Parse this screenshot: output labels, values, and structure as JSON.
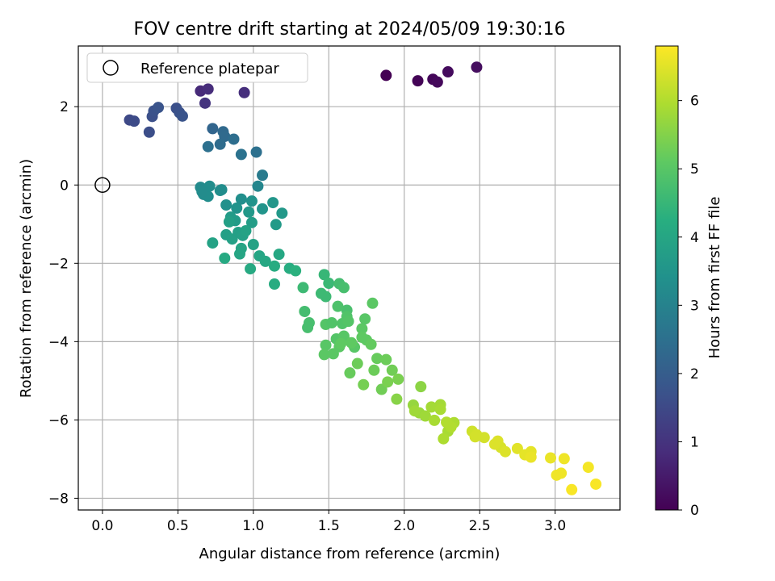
{
  "chart_data": {
    "type": "scatter",
    "title": "FOV centre drift starting at 2024/05/09 19:30:16",
    "xlabel": "Angular distance from reference (arcmin)",
    "ylabel": "Rotation from reference (arcmin)",
    "xlim": [
      -0.16,
      3.43
    ],
    "ylim": [
      -8.3,
      3.55
    ],
    "xticks": [
      0.0,
      0.5,
      1.0,
      1.5,
      2.0,
      2.5,
      3.0
    ],
    "xtick_labels": [
      "0.0",
      "0.5",
      "1.0",
      "1.5",
      "2.0",
      "2.5",
      "3.0"
    ],
    "yticks": [
      2,
      0,
      -2,
      -4,
      -6,
      -8
    ],
    "ytick_labels": [
      "2",
      "0",
      "−2",
      "−4",
      "−6",
      "−8"
    ],
    "grid": true,
    "legend": {
      "placement": "top-left",
      "entries": [
        "Reference platepar"
      ]
    },
    "reference_point": {
      "x": 0.0,
      "y": 0.0,
      "label": "Reference platepar"
    },
    "colorbar": {
      "label": "Hours from first FF file",
      "colormap": "viridis",
      "range": [
        0,
        6.8
      ],
      "ticks": [
        0,
        1,
        2,
        3,
        4,
        5,
        6
      ],
      "tick_labels": [
        "0",
        "1",
        "2",
        "3",
        "4",
        "5",
        "6"
      ]
    },
    "series": [
      {
        "x": [
          1.88,
          2.09,
          2.19,
          2.22,
          2.29,
          2.48,
          0.65,
          0.7,
          0.94,
          0.68,
          0.18,
          0.21,
          0.31,
          0.33,
          0.34,
          0.37,
          0.49,
          0.51,
          0.53,
          0.73,
          0.8,
          0.81,
          0.78,
          0.87,
          0.7,
          0.92,
          1.02,
          1.06,
          0.65,
          0.67,
          0.7,
          0.71,
          0.78,
          0.79,
          0.66,
          0.82,
          0.89,
          0.92,
          0.99,
          1.06,
          1.13,
          1.19,
          1.15,
          0.85,
          0.88,
          0.97,
          0.99,
          1.03,
          0.82,
          0.86,
          0.9,
          0.93,
          0.95,
          0.84,
          0.92,
          1.0,
          1.04,
          1.08,
          0.73,
          0.81,
          0.91,
          0.98,
          1.14,
          1.14,
          1.17,
          1.24,
          1.28,
          1.33,
          1.34,
          1.36,
          1.37,
          1.47,
          1.48,
          1.5,
          1.45,
          1.57,
          1.6,
          1.62,
          1.56,
          1.62,
          1.59,
          1.63,
          1.48,
          1.52,
          1.55,
          1.6,
          1.67,
          1.72,
          1.74,
          1.79,
          1.48,
          1.53,
          1.57,
          1.65,
          1.72,
          1.75,
          1.78,
          1.82,
          1.88,
          1.92,
          1.96,
          1.47,
          1.58,
          1.64,
          1.69,
          1.8,
          1.85,
          1.89,
          1.73,
          1.95,
          2.06,
          2.1,
          2.14,
          2.18,
          2.24,
          2.29,
          2.33,
          2.07,
          2.2,
          2.26,
          2.31,
          2.11,
          2.24,
          2.28,
          2.45,
          2.48,
          2.53,
          2.62,
          2.64,
          2.67,
          2.75,
          2.84,
          2.47,
          2.6,
          2.8,
          2.84,
          2.97,
          3.06,
          3.04,
          3.01,
          3.22,
          3.11,
          3.27
        ],
        "y": [
          2.8,
          2.66,
          2.7,
          2.63,
          2.89,
          3.01,
          2.4,
          2.45,
          2.36,
          2.09,
          1.66,
          1.63,
          1.35,
          1.75,
          1.89,
          1.98,
          1.96,
          1.85,
          1.76,
          1.44,
          1.36,
          1.24,
          1.04,
          1.17,
          0.98,
          0.78,
          0.84,
          0.25,
          -0.06,
          -0.24,
          -0.29,
          -0.03,
          -0.14,
          -0.12,
          -0.17,
          -0.51,
          -0.59,
          -0.36,
          -0.41,
          -0.61,
          -0.45,
          -0.72,
          -1.01,
          -0.82,
          -0.91,
          -0.69,
          -0.96,
          -0.03,
          -1.27,
          -1.38,
          -1.21,
          -1.29,
          -1.17,
          -0.94,
          -1.62,
          -1.52,
          -1.81,
          -1.95,
          -1.48,
          -1.87,
          -1.76,
          -2.14,
          -2.07,
          -2.53,
          -1.77,
          -2.13,
          -2.19,
          -2.62,
          -3.23,
          -3.64,
          -3.52,
          -2.29,
          -2.85,
          -2.51,
          -2.77,
          -2.52,
          -2.62,
          -3.2,
          -3.1,
          -3.36,
          -3.54,
          -3.48,
          -3.56,
          -3.52,
          -3.93,
          -3.86,
          -4.14,
          -3.67,
          -3.42,
          -3.02,
          -4.09,
          -4.31,
          -4.13,
          -4.03,
          -3.89,
          -3.96,
          -4.07,
          -4.43,
          -4.46,
          -4.73,
          -4.96,
          -4.33,
          -4.05,
          -4.8,
          -4.56,
          -4.73,
          -5.22,
          -5.03,
          -5.1,
          -5.47,
          -5.62,
          -5.82,
          -5.9,
          -5.67,
          -5.61,
          -6.29,
          -6.07,
          -5.77,
          -6.01,
          -6.48,
          -6.18,
          -5.15,
          -5.73,
          -6.06,
          -6.29,
          -6.38,
          -6.45,
          -6.54,
          -6.7,
          -6.81,
          -6.73,
          -6.81,
          -6.43,
          -6.62,
          -6.89,
          -6.95,
          -6.97,
          -6.99,
          -7.36,
          -7.41,
          -7.21,
          -7.78,
          -7.64
        ],
        "hours": [
          0.0,
          0.05,
          0.1,
          0.15,
          0.2,
          0.25,
          0.8,
          0.85,
          0.9,
          1.0,
          1.5,
          1.55,
          1.6,
          1.65,
          1.7,
          1.75,
          1.65,
          1.7,
          1.75,
          2.2,
          2.3,
          2.35,
          2.4,
          2.45,
          2.5,
          2.55,
          2.5,
          2.8,
          3.2,
          3.25,
          3.3,
          3.3,
          3.35,
          3.3,
          3.25,
          3.4,
          3.45,
          3.35,
          3.45,
          3.5,
          3.55,
          3.6,
          3.65,
          3.7,
          3.7,
          3.6,
          3.75,
          3.1,
          3.8,
          3.85,
          3.8,
          3.85,
          3.9,
          3.8,
          3.95,
          3.9,
          4.0,
          4.05,
          3.9,
          4.1,
          4.0,
          4.1,
          4.15,
          4.2,
          4.05,
          4.2,
          4.3,
          4.6,
          4.7,
          4.75,
          4.75,
          4.5,
          4.6,
          4.55,
          4.6,
          4.7,
          4.75,
          4.8,
          4.85,
          4.9,
          4.9,
          4.95,
          4.95,
          4.9,
          4.95,
          5.0,
          5.0,
          5.05,
          5.0,
          5.05,
          5.0,
          5.05,
          5.05,
          5.1,
          5.1,
          5.1,
          5.15,
          5.2,
          5.25,
          5.3,
          5.4,
          5.05,
          5.1,
          5.2,
          5.25,
          5.25,
          5.3,
          5.4,
          5.35,
          5.55,
          5.7,
          5.75,
          5.8,
          5.85,
          5.85,
          5.9,
          5.95,
          5.8,
          5.9,
          5.95,
          6.0,
          5.6,
          5.9,
          6.0,
          6.3,
          6.35,
          6.35,
          6.45,
          6.4,
          6.45,
          6.5,
          6.55,
          6.35,
          6.45,
          6.55,
          6.6,
          6.6,
          6.65,
          6.65,
          6.65,
          6.7,
          6.75,
          6.75
        ]
      }
    ]
  }
}
